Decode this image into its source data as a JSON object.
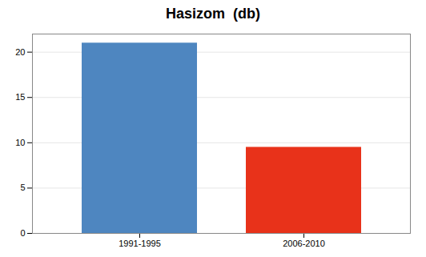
{
  "chart_data": {
    "type": "bar",
    "title": "Hasizom  (db)",
    "categories": [
      "1991-1995",
      "2006-2010"
    ],
    "values": [
      21.0,
      9.5
    ],
    "colors": [
      "#4e86c0",
      "#e8321a"
    ],
    "ylim": [
      0,
      22
    ],
    "yticks": [
      0,
      5,
      10,
      15,
      20
    ],
    "grid": true
  }
}
